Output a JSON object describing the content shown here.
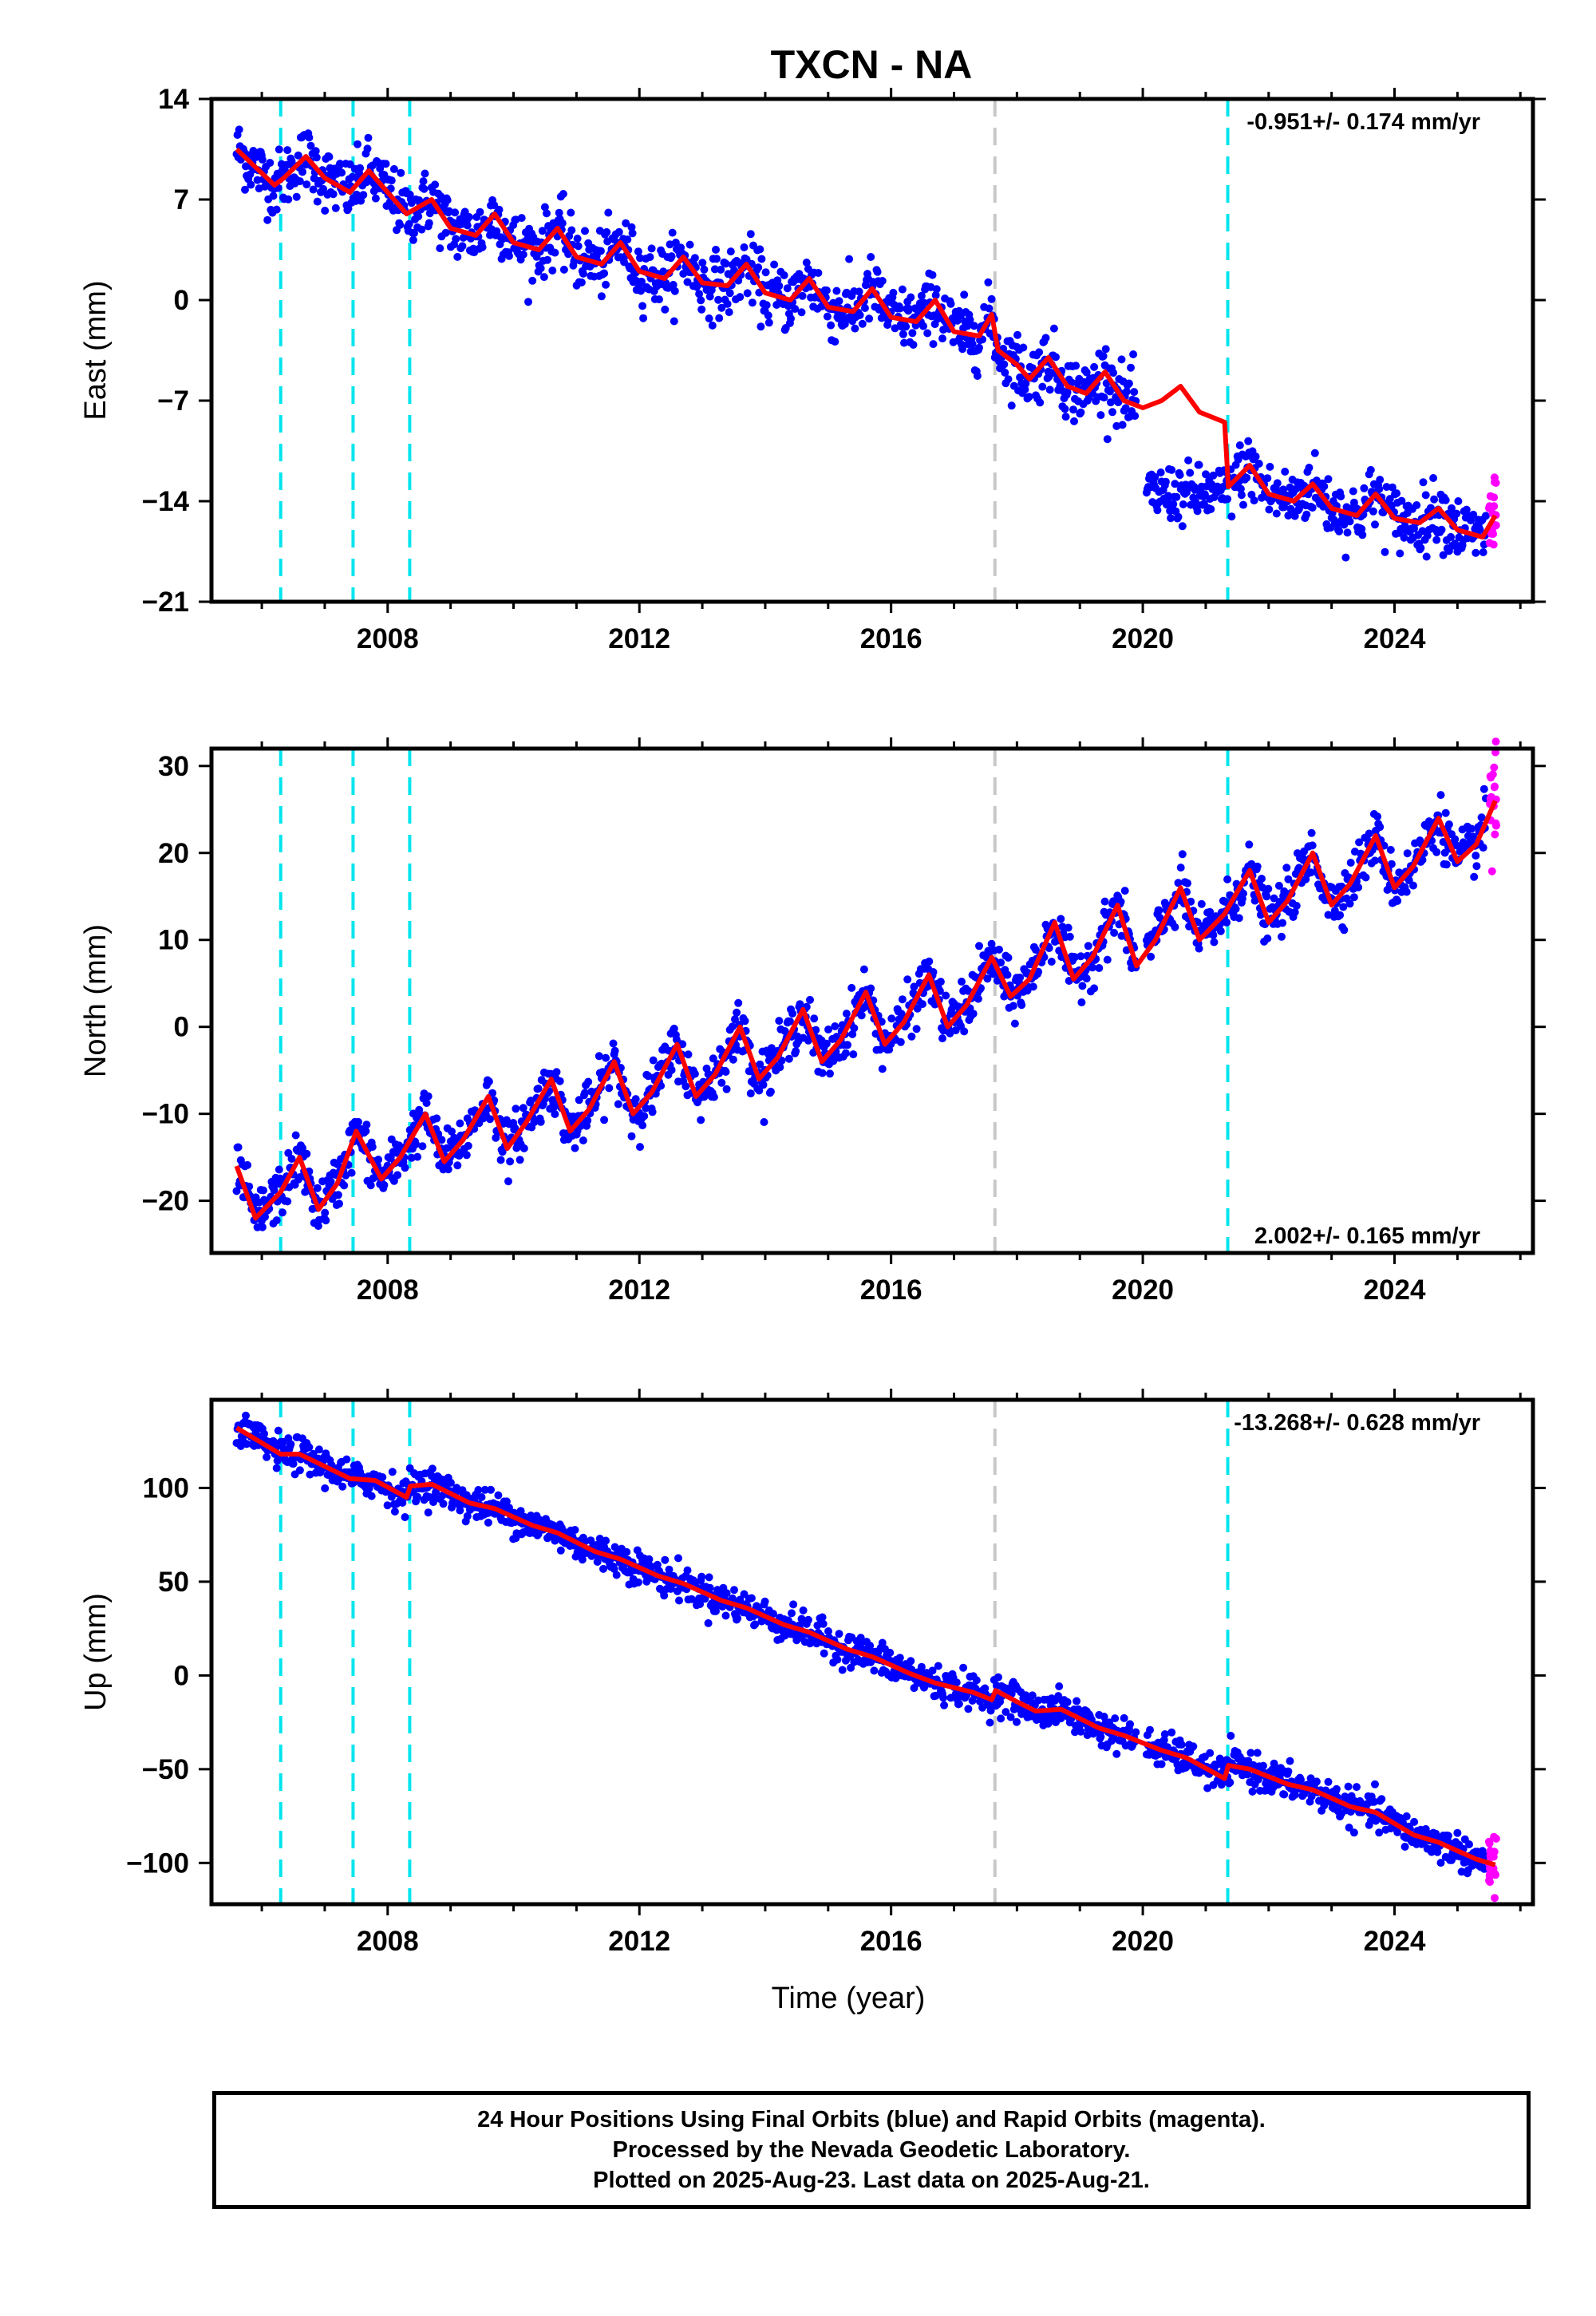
{
  "title": "TXCN - NA",
  "footer": {
    "line1": "24 Hour Positions Using Final Orbits (blue) and Rapid Orbits (magenta).",
    "line2": "Processed by the Nevada Geodetic Laboratory.",
    "line3": "Plotted on 2025-Aug-23. Last data on 2025-Aug-21."
  },
  "colors": {
    "final_orbits": "#0000ff",
    "rapid_orbits": "#ff00ff",
    "model_fit": "#ff0000",
    "equipment_change": "#00e5ee",
    "earthquake": "#c8c8c8"
  },
  "chart_data": [
    {
      "type": "scatter",
      "name": "east",
      "ylabel": "East (mm)",
      "xlabel": "",
      "xlim": [
        2005.2,
        2026.2
      ],
      "ylim": [
        -21,
        14
      ],
      "xticks": [
        2008,
        2012,
        2016,
        2020,
        2024
      ],
      "yticks": [
        -21,
        -14,
        -7,
        0,
        7,
        14
      ],
      "rate_label": "-0.951+/- 0.174 mm/yr",
      "rate_position": "top-right",
      "steps": [
        2006.3,
        2007.45,
        2008.35,
        2017.65,
        2021.35
      ],
      "earthquake_steps": [
        2017.65
      ],
      "model": [
        [
          2005.6,
          10.5
        ],
        [
          2006.2,
          8.0
        ],
        [
          2006.35,
          8.5
        ],
        [
          2006.7,
          10.0
        ],
        [
          2007.0,
          8.5
        ],
        [
          2007.4,
          7.5
        ],
        [
          2007.7,
          9.0
        ],
        [
          2008.0,
          7.5
        ],
        [
          2008.3,
          6.0
        ],
        [
          2008.7,
          7.0
        ],
        [
          2009.0,
          5.0
        ],
        [
          2009.4,
          4.5
        ],
        [
          2009.7,
          6.0
        ],
        [
          2010.0,
          4.0
        ],
        [
          2010.4,
          3.5
        ],
        [
          2010.7,
          5.0
        ],
        [
          2011.0,
          3.0
        ],
        [
          2011.4,
          2.5
        ],
        [
          2011.7,
          4.0
        ],
        [
          2012.0,
          2.0
        ],
        [
          2012.4,
          1.5
        ],
        [
          2012.7,
          3.0
        ],
        [
          2013.0,
          1.2
        ],
        [
          2013.4,
          1.0
        ],
        [
          2013.7,
          2.5
        ],
        [
          2014.0,
          0.5
        ],
        [
          2014.4,
          0.0
        ],
        [
          2014.7,
          1.5
        ],
        [
          2015.0,
          -0.5
        ],
        [
          2015.4,
          -0.8
        ],
        [
          2015.7,
          0.8
        ],
        [
          2016.0,
          -1.2
        ],
        [
          2016.4,
          -1.5
        ],
        [
          2016.7,
          0.0
        ],
        [
          2017.0,
          -2.2
        ],
        [
          2017.4,
          -2.5
        ],
        [
          2017.6,
          -1.0
        ],
        [
          2017.7,
          -3.5
        ],
        [
          2018.0,
          -4.5
        ],
        [
          2018.2,
          -5.5
        ],
        [
          2018.5,
          -4.0
        ],
        [
          2018.8,
          -6.0
        ],
        [
          2019.1,
          -6.5
        ],
        [
          2019.4,
          -5.0
        ],
        [
          2019.7,
          -7.0
        ],
        [
          2020.0,
          -7.5
        ],
        [
          2020.3,
          -7.0
        ],
        [
          2020.6,
          -6.0
        ],
        [
          2020.9,
          -7.8
        ],
        [
          2021.3,
          -8.5
        ],
        [
          2021.36,
          -13.0
        ],
        [
          2021.7,
          -11.5
        ],
        [
          2022.0,
          -13.5
        ],
        [
          2022.4,
          -14.0
        ],
        [
          2022.7,
          -12.8
        ],
        [
          2023.0,
          -14.5
        ],
        [
          2023.4,
          -15.0
        ],
        [
          2023.7,
          -13.5
        ],
        [
          2024.0,
          -15.2
        ],
        [
          2024.4,
          -15.5
        ],
        [
          2024.7,
          -14.5
        ],
        [
          2025.0,
          -16.0
        ],
        [
          2025.4,
          -16.5
        ],
        [
          2025.6,
          -15.0
        ]
      ],
      "scatter_sigma": 1.1,
      "gap": [
        2019.9,
        2020.05
      ]
    },
    {
      "type": "scatter",
      "name": "north",
      "ylabel": "North (mm)",
      "xlabel": "",
      "xlim": [
        2005.2,
        2026.2
      ],
      "ylim": [
        -26,
        32
      ],
      "xticks": [
        2008,
        2012,
        2016,
        2020,
        2024
      ],
      "yticks": [
        -20,
        -10,
        0,
        10,
        20,
        30
      ],
      "rate_label": "2.002+/- 0.165 mm/yr",
      "rate_position": "bottom-right",
      "steps": [
        2006.3,
        2007.45,
        2008.35,
        2017.65,
        2021.35
      ],
      "earthquake_steps": [
        2017.65
      ],
      "model": [
        [
          2005.6,
          -16.0
        ],
        [
          2005.9,
          -22.0
        ],
        [
          2006.3,
          -19.0
        ],
        [
          2006.6,
          -15.0
        ],
        [
          2006.9,
          -21.0
        ],
        [
          2007.2,
          -18.0
        ],
        [
          2007.5,
          -12.0
        ],
        [
          2007.9,
          -17.5
        ],
        [
          2008.2,
          -15.0
        ],
        [
          2008.6,
          -10.0
        ],
        [
          2008.9,
          -15.5
        ],
        [
          2009.2,
          -13.0
        ],
        [
          2009.6,
          -8.0
        ],
        [
          2009.9,
          -14.0
        ],
        [
          2010.2,
          -11.0
        ],
        [
          2010.6,
          -6.0
        ],
        [
          2010.9,
          -12.0
        ],
        [
          2011.2,
          -9.5
        ],
        [
          2011.6,
          -4.0
        ],
        [
          2011.9,
          -10.0
        ],
        [
          2012.2,
          -7.5
        ],
        [
          2012.6,
          -2.0
        ],
        [
          2012.9,
          -8.0
        ],
        [
          2013.2,
          -5.5
        ],
        [
          2013.6,
          0.0
        ],
        [
          2013.9,
          -6.0
        ],
        [
          2014.2,
          -3.5
        ],
        [
          2014.6,
          2.0
        ],
        [
          2014.9,
          -4.0
        ],
        [
          2015.2,
          -1.5
        ],
        [
          2015.6,
          4.0
        ],
        [
          2015.9,
          -2.0
        ],
        [
          2016.2,
          0.5
        ],
        [
          2016.6,
          6.0
        ],
        [
          2016.9,
          0.0
        ],
        [
          2017.2,
          2.5
        ],
        [
          2017.6,
          8.0
        ],
        [
          2017.9,
          3.5
        ],
        [
          2018.2,
          5.5
        ],
        [
          2018.6,
          12.0
        ],
        [
          2018.9,
          5.5
        ],
        [
          2019.2,
          8.0
        ],
        [
          2019.6,
          14.0
        ],
        [
          2019.9,
          7.0
        ],
        [
          2020.2,
          10.0
        ],
        [
          2020.6,
          16.0
        ],
        [
          2020.9,
          10.0
        ],
        [
          2021.3,
          13.0
        ],
        [
          2021.7,
          18.0
        ],
        [
          2022.0,
          12.0
        ],
        [
          2022.3,
          14.5
        ],
        [
          2022.7,
          20.0
        ],
        [
          2023.0,
          14.0
        ],
        [
          2023.3,
          16.5
        ],
        [
          2023.7,
          22.0
        ],
        [
          2024.0,
          16.0
        ],
        [
          2024.3,
          18.5
        ],
        [
          2024.7,
          24.0
        ],
        [
          2025.0,
          19.0
        ],
        [
          2025.3,
          21.0
        ],
        [
          2025.6,
          26.0
        ]
      ],
      "scatter_sigma": 1.5,
      "gap": [
        2019.9,
        2020.05
      ]
    },
    {
      "type": "scatter",
      "name": "up",
      "ylabel": "Up (mm)",
      "xlabel": "Time (year)",
      "xlim": [
        2005.2,
        2026.2
      ],
      "ylim": [
        -122,
        147
      ],
      "xticks": [
        2008,
        2012,
        2016,
        2020,
        2024
      ],
      "yticks": [
        -100,
        -50,
        0,
        50,
        100
      ],
      "rate_label": "-13.268+/- 0.628 mm/yr",
      "rate_position": "top-right",
      "steps": [
        2006.3,
        2007.45,
        2008.35,
        2017.65,
        2021.35
      ],
      "earthquake_steps": [
        2017.65
      ],
      "model": [
        [
          2005.6,
          132
        ],
        [
          2006.3,
          118
        ],
        [
          2006.6,
          118
        ],
        [
          2007.4,
          105
        ],
        [
          2007.8,
          104
        ],
        [
          2008.3,
          95
        ],
        [
          2008.36,
          101
        ],
        [
          2008.7,
          102
        ],
        [
          2009.3,
          92
        ],
        [
          2009.7,
          89
        ],
        [
          2010.3,
          80
        ],
        [
          2010.7,
          76
        ],
        [
          2011.3,
          66
        ],
        [
          2011.7,
          62
        ],
        [
          2012.3,
          53
        ],
        [
          2012.7,
          49
        ],
        [
          2013.3,
          40
        ],
        [
          2013.7,
          36
        ],
        [
          2014.3,
          27
        ],
        [
          2014.7,
          23
        ],
        [
          2015.3,
          14
        ],
        [
          2015.7,
          10
        ],
        [
          2016.3,
          1
        ],
        [
          2016.7,
          -4
        ],
        [
          2017.3,
          -9
        ],
        [
          2017.6,
          -13
        ],
        [
          2017.66,
          -8
        ],
        [
          2018.0,
          -14
        ],
        [
          2018.3,
          -19
        ],
        [
          2018.7,
          -18
        ],
        [
          2019.3,
          -28
        ],
        [
          2019.7,
          -32
        ],
        [
          2020.3,
          -40
        ],
        [
          2020.7,
          -44
        ],
        [
          2021.3,
          -55
        ],
        [
          2021.36,
          -48
        ],
        [
          2021.7,
          -50
        ],
        [
          2022.3,
          -58
        ],
        [
          2022.7,
          -61
        ],
        [
          2023.3,
          -70
        ],
        [
          2023.7,
          -73
        ],
        [
          2024.3,
          -85
        ],
        [
          2024.7,
          -89
        ],
        [
          2025.3,
          -98
        ],
        [
          2025.6,
          -101
        ]
      ],
      "scatter_sigma": 4.5,
      "gap": [
        2019.9,
        2020.05
      ]
    }
  ]
}
